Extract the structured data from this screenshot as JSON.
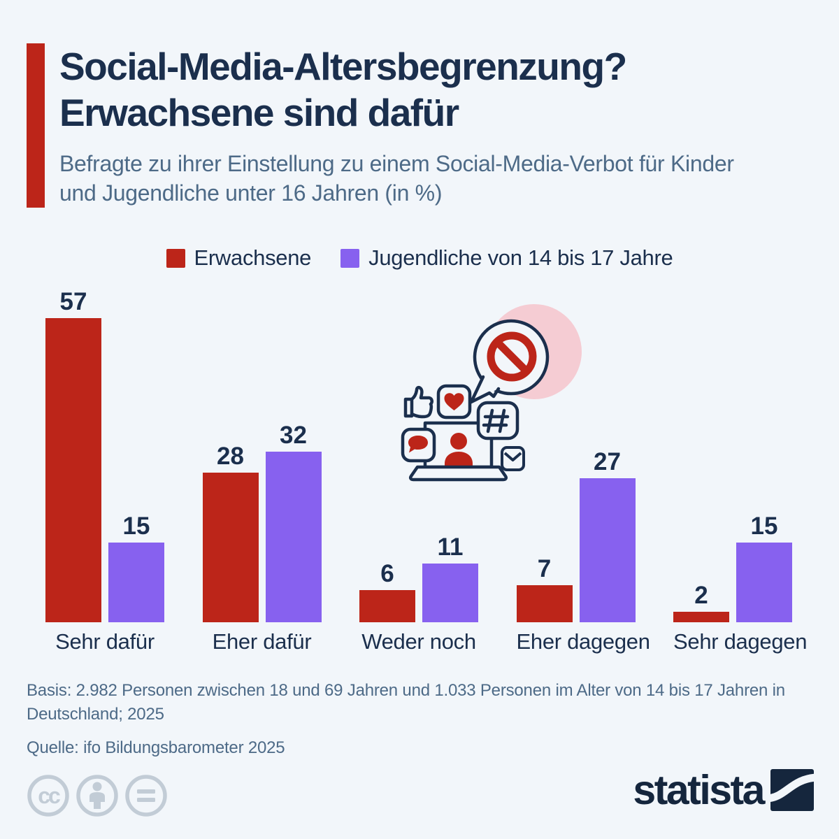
{
  "header": {
    "title": "Social-Media-Altersbegrenzung? Erwachsene sind dafür",
    "subtitle": "Befragte zu ihrer Einstellung zu einem Social-Media-Verbot für Kinder und Jugendliche unter 16 Jahren (in %)"
  },
  "chart_data": {
    "type": "bar",
    "title": "Social-Media-Altersbegrenzung? Erwachsene sind dafür",
    "categories": [
      "Sehr dafür",
      "Eher dafür",
      "Weder noch",
      "Eher dagegen",
      "Sehr dagegen"
    ],
    "series": [
      {
        "name": "Erwachsene",
        "key": "erwachsene",
        "color": "#bc2519",
        "values": [
          57,
          28,
          6,
          7,
          2
        ]
      },
      {
        "name": "Jugendliche von 14 bis 17 Jahre",
        "key": "jugendliche",
        "color": "#8761ef",
        "values": [
          15,
          32,
          11,
          27,
          15
        ]
      }
    ],
    "unit": "%",
    "ylim": [
      0,
      60
    ],
    "grid": false,
    "legend_position": "top",
    "value_labels": "above-bars"
  },
  "footer": {
    "basis": "Basis: 2.982 Personen zwischen 18 und 69 Jahren und 1.033 Personen im Alter von 14 bis 17 Jahren in Deutschland; 2025",
    "source": "Quelle: ifo Bildungsbarometer 2025"
  },
  "branding": {
    "wordmark": "statista"
  },
  "icons": {
    "license": [
      "cc-icon",
      "attribution-icon",
      "no-derivatives-icon"
    ],
    "illustration": "social-media-ban-illustration",
    "logo": "statista-logo-icon"
  },
  "colors": {
    "background": "#f2f6fa",
    "red": "#bc2519",
    "purple": "#8761ef",
    "navy": "#1b2f4d",
    "muted_blue": "#4d6a87",
    "pink": "#f5ccd3",
    "icon_gray": "#c2ccd6"
  }
}
